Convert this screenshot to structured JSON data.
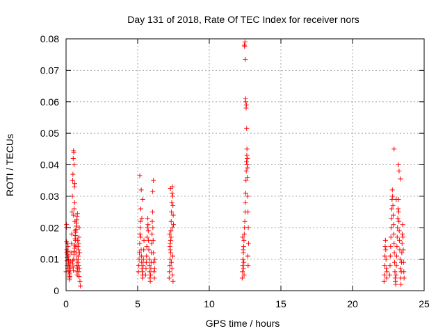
{
  "chart_data": {
    "type": "scatter",
    "title": "Day 131 of 2018, Rate Of TEC Index for receiver nors",
    "xlabel": "GPS time / hours",
    "ylabel": "ROTI / TECUs",
    "xlim": [
      0,
      25
    ],
    "ylim": [
      0,
      0.08
    ],
    "xticks": [
      0,
      5,
      10,
      15,
      20,
      25
    ],
    "yticks": [
      0,
      0.01,
      0.02,
      0.03,
      0.04,
      0.05,
      0.06,
      0.07,
      0.08
    ],
    "xtick_labels": [
      "0",
      "5",
      "10",
      "15",
      "20",
      "25"
    ],
    "ytick_labels": [
      "0",
      "0.01",
      "0.02",
      "0.03",
      "0.04",
      "0.05",
      "0.06",
      "0.07",
      "0.08"
    ],
    "grid": true,
    "marker": "+",
    "color": "#ff0000",
    "series": [
      {
        "x": [
          0.0,
          0.02,
          0.04,
          0.05,
          0.07,
          0.09,
          0.1,
          0.12,
          0.14,
          0.16,
          0.18,
          0.2,
          0.22,
          0.24,
          0.26,
          0.28,
          0.3,
          0.03,
          0.06,
          0.11,
          0.15,
          0.19,
          0.23,
          0.27,
          0.08,
          0.13,
          0.17,
          0.21,
          0.25,
          0.29,
          0.35,
          0.38,
          0.4,
          0.42,
          0.44,
          0.46,
          0.48,
          0.5,
          0.52,
          0.54,
          0.56,
          0.58,
          0.6,
          0.62,
          0.64,
          0.66,
          0.68,
          0.7,
          0.72,
          0.74,
          0.76,
          0.78,
          0.8,
          0.82,
          0.84,
          0.86,
          0.88,
          0.9,
          0.92,
          0.95,
          0.45,
          0.47,
          0.49,
          0.51,
          0.53,
          0.55,
          0.57,
          0.59,
          0.61,
          0.63,
          0.65,
          0.67,
          0.69,
          0.71,
          0.73,
          0.75,
          0.77,
          0.79,
          0.81,
          0.83,
          0.85,
          0.87,
          0.89,
          0.91,
          0.93,
          0.97,
          1.0,
          0.52,
          0.56,
          0.6
        ],
        "y": [
          0.006,
          0.02,
          0.0155,
          0.012,
          0.0095,
          0.008,
          0.007,
          0.0115,
          0.014,
          0.01,
          0.0085,
          0.0065,
          0.005,
          0.0035,
          0.0045,
          0.0075,
          0.009,
          0.021,
          0.013,
          0.015,
          0.011,
          0.006,
          0.004,
          0.007,
          0.0105,
          0.0125,
          0.0095,
          0.008,
          0.0055,
          0.0065,
          0.012,
          0.015,
          0.018,
          0.025,
          0.03,
          0.035,
          0.037,
          0.042,
          0.0445,
          0.044,
          0.04,
          0.033,
          0.028,
          0.022,
          0.019,
          0.016,
          0.014,
          0.012,
          0.01,
          0.008,
          0.006,
          0.005,
          0.007,
          0.009,
          0.011,
          0.013,
          0.015,
          0.017,
          0.02,
          0.012,
          0.0095,
          0.0085,
          0.0075,
          0.0065,
          0.01,
          0.0115,
          0.0125,
          0.0135,
          0.0145,
          0.0165,
          0.0175,
          0.0185,
          0.0195,
          0.0205,
          0.0215,
          0.0225,
          0.0235,
          0.0245,
          0.016,
          0.014,
          0.01,
          0.008,
          0.006,
          0.0045,
          0.007,
          0.003,
          0.0015,
          0.024,
          0.026,
          0.034
        ]
      },
      {
        "x": [
          5.05,
          5.08,
          5.1,
          5.12,
          5.14,
          5.16,
          5.18,
          5.2,
          5.22,
          5.24,
          5.26,
          5.28,
          5.3,
          5.32,
          5.34,
          5.36,
          5.38,
          5.4,
          5.42,
          5.44,
          5.15,
          5.25,
          5.35,
          5.21,
          5.29,
          5.55,
          5.58,
          5.6,
          5.62,
          5.64,
          5.66,
          5.68,
          5.7,
          5.72,
          5.74,
          5.76,
          5.78,
          5.8,
          5.82,
          5.84,
          5.86,
          5.88,
          5.9,
          5.92,
          5.94,
          5.96,
          5.98,
          6.0,
          6.02,
          6.04,
          6.06,
          6.08,
          6.1,
          6.12,
          6.14,
          6.16,
          6.18,
          6.2,
          6.1,
          6.05
        ],
        "y": [
          0.006,
          0.008,
          0.01,
          0.012,
          0.015,
          0.018,
          0.02,
          0.022,
          0.017,
          0.013,
          0.011,
          0.009,
          0.007,
          0.005,
          0.004,
          0.006,
          0.008,
          0.01,
          0.013,
          0.016,
          0.0365,
          0.032,
          0.029,
          0.026,
          0.023,
          0.005,
          0.007,
          0.009,
          0.011,
          0.014,
          0.017,
          0.02,
          0.023,
          0.021,
          0.019,
          0.016,
          0.013,
          0.01,
          0.008,
          0.006,
          0.004,
          0.003,
          0.005,
          0.007,
          0.009,
          0.012,
          0.015,
          0.018,
          0.022,
          0.025,
          0.02,
          0.016,
          0.012,
          0.009,
          0.006,
          0.004,
          0.007,
          0.01,
          0.035,
          0.0315
        ]
      },
      {
        "x": [
          7.2,
          7.22,
          7.24,
          7.26,
          7.28,
          7.3,
          7.32,
          7.34,
          7.36,
          7.38,
          7.4,
          7.42,
          7.44,
          7.46,
          7.48,
          7.5,
          7.23,
          7.27,
          7.31,
          7.35,
          7.39,
          7.43,
          7.47,
          7.25,
          7.33,
          7.41,
          7.45,
          7.29
        ],
        "y": [
          0.004,
          0.006,
          0.008,
          0.01,
          0.013,
          0.016,
          0.019,
          0.022,
          0.025,
          0.028,
          0.031,
          0.033,
          0.03,
          0.027,
          0.024,
          0.021,
          0.018,
          0.015,
          0.012,
          0.009,
          0.007,
          0.005,
          0.003,
          0.014,
          0.017,
          0.02,
          0.011,
          0.0325
        ]
      },
      {
        "x": [
          12.3,
          12.32,
          12.34,
          12.36,
          12.38,
          12.4,
          12.42,
          12.44,
          12.46,
          12.48,
          12.5,
          12.52,
          12.54,
          12.56,
          12.58,
          12.6,
          12.62,
          12.64,
          12.66,
          12.68,
          12.7,
          12.72,
          12.74,
          12.45,
          12.47,
          12.49,
          12.51,
          12.53,
          12.55,
          12.57,
          12.59,
          12.61,
          12.63,
          12.65,
          12.67,
          12.35,
          12.39,
          12.43,
          12.41,
          12.37,
          12.33,
          12.69,
          12.71
        ],
        "y": [
          0.004,
          0.006,
          0.008,
          0.01,
          0.012,
          0.014,
          0.016,
          0.018,
          0.02,
          0.022,
          0.025,
          0.028,
          0.031,
          0.035,
          0.038,
          0.041,
          0.043,
          0.04,
          0.036,
          0.03,
          0.025,
          0.02,
          0.015,
          0.078,
          0.0775,
          0.079,
          0.0735,
          0.061,
          0.06,
          0.058,
          0.059,
          0.0515,
          0.045,
          0.042,
          0.039,
          0.01,
          0.007,
          0.005,
          0.009,
          0.013,
          0.017,
          0.011,
          0.008
        ]
      },
      {
        "x": [
          22.2,
          22.22,
          22.24,
          22.26,
          22.28,
          22.3,
          22.32,
          22.34,
          22.36,
          22.38,
          22.4,
          22.6,
          22.62,
          22.64,
          22.66,
          22.68,
          22.7,
          22.72,
          22.74,
          22.76,
          22.78,
          22.8,
          22.82,
          22.84,
          22.86,
          22.88,
          22.9,
          22.92,
          22.94,
          22.96,
          22.98,
          23.0,
          23.02,
          23.04,
          23.06,
          23.08,
          23.1,
          23.12,
          23.14,
          23.16,
          23.18,
          23.2,
          23.22,
          23.24,
          23.26,
          23.28,
          23.3,
          23.32,
          23.34,
          23.36,
          23.38,
          23.4,
          23.42,
          23.44,
          23.46,
          23.48,
          23.5,
          23.52,
          23.54,
          23.56,
          23.58,
          23.6,
          22.9,
          23.05,
          23.2,
          23.25,
          23.35
        ],
        "y": [
          0.003,
          0.005,
          0.008,
          0.011,
          0.014,
          0.016,
          0.013,
          0.01,
          0.007,
          0.004,
          0.006,
          0.005,
          0.008,
          0.011,
          0.014,
          0.017,
          0.02,
          0.023,
          0.026,
          0.029,
          0.032,
          0.03,
          0.027,
          0.024,
          0.021,
          0.018,
          0.015,
          0.012,
          0.009,
          0.006,
          0.004,
          0.003,
          0.002,
          0.005,
          0.008,
          0.011,
          0.014,
          0.017,
          0.02,
          0.023,
          0.026,
          0.029,
          0.025,
          0.022,
          0.019,
          0.016,
          0.013,
          0.01,
          0.007,
          0.004,
          0.002,
          0.006,
          0.009,
          0.012,
          0.015,
          0.018,
          0.021,
          0.017,
          0.013,
          0.009,
          0.006,
          0.004,
          0.045,
          0.029,
          0.04,
          0.038,
          0.0355
        ]
      }
    ]
  }
}
